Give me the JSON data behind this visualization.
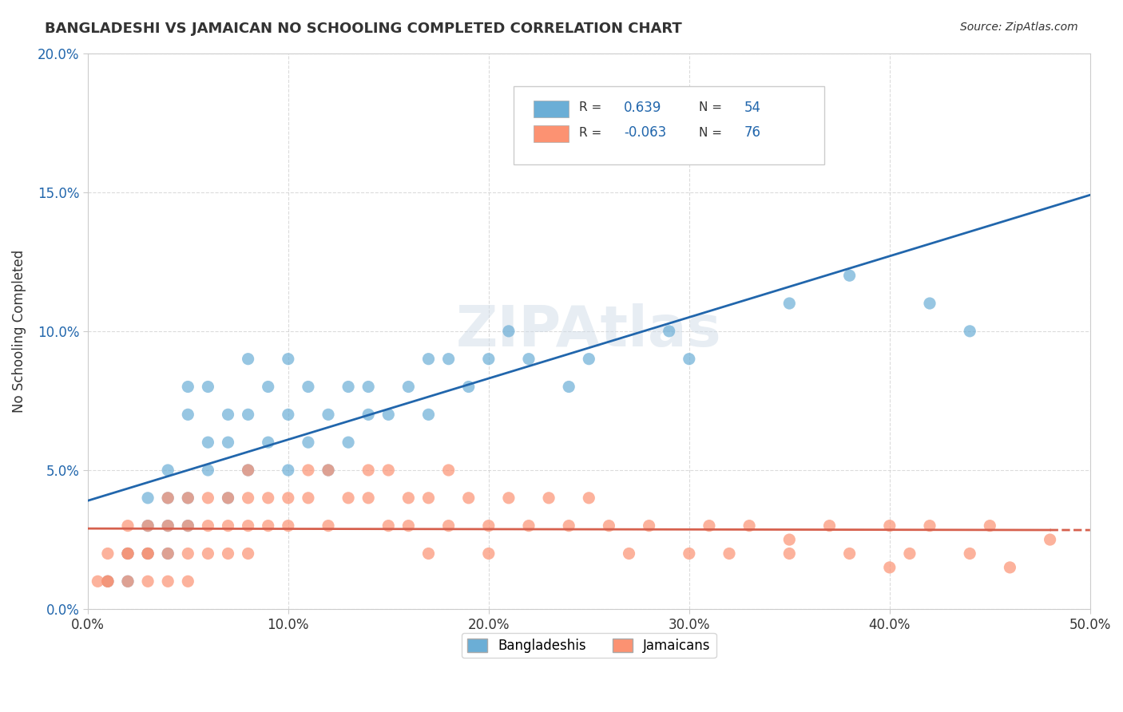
{
  "title": "BANGLADESHI VS JAMAICAN NO SCHOOLING COMPLETED CORRELATION CHART",
  "source": "Source: ZipAtlas.com",
  "xlabel": "",
  "ylabel": "No Schooling Completed",
  "xlim": [
    0.0,
    0.5
  ],
  "ylim": [
    0.0,
    0.2
  ],
  "xticks": [
    0.0,
    0.1,
    0.2,
    0.3,
    0.4,
    0.5
  ],
  "yticks": [
    0.0,
    0.05,
    0.1,
    0.15,
    0.2
  ],
  "xtick_labels": [
    "0.0%",
    "10.0%",
    "20.0%",
    "30.0%",
    "40.0%",
    "50.0%"
  ],
  "ytick_labels": [
    "0.0%",
    "5.0%",
    "10.0%",
    "15.0%",
    "20.0%"
  ],
  "blue_R": 0.639,
  "blue_N": 54,
  "pink_R": -0.063,
  "pink_N": 76,
  "blue_color": "#6baed6",
  "pink_color": "#fc9272",
  "blue_line_color": "#2166ac",
  "pink_line_color": "#d6604d",
  "background_color": "#ffffff",
  "legend_label_blue": "Bangladeshis",
  "legend_label_pink": "Jamaicans",
  "blue_scatter_x": [
    0.01,
    0.02,
    0.02,
    0.03,
    0.03,
    0.03,
    0.04,
    0.04,
    0.04,
    0.04,
    0.05,
    0.05,
    0.05,
    0.05,
    0.06,
    0.06,
    0.06,
    0.07,
    0.07,
    0.07,
    0.08,
    0.08,
    0.08,
    0.09,
    0.09,
    0.1,
    0.1,
    0.1,
    0.11,
    0.11,
    0.12,
    0.12,
    0.13,
    0.13,
    0.14,
    0.14,
    0.15,
    0.16,
    0.17,
    0.17,
    0.18,
    0.19,
    0.2,
    0.21,
    0.22,
    0.24,
    0.25,
    0.27,
    0.29,
    0.3,
    0.35,
    0.38,
    0.42,
    0.44
  ],
  "blue_scatter_y": [
    0.01,
    0.02,
    0.01,
    0.03,
    0.02,
    0.04,
    0.03,
    0.02,
    0.04,
    0.05,
    0.08,
    0.07,
    0.04,
    0.03,
    0.08,
    0.06,
    0.05,
    0.07,
    0.06,
    0.04,
    0.09,
    0.07,
    0.05,
    0.08,
    0.06,
    0.09,
    0.07,
    0.05,
    0.08,
    0.06,
    0.07,
    0.05,
    0.08,
    0.06,
    0.07,
    0.08,
    0.07,
    0.08,
    0.09,
    0.07,
    0.09,
    0.08,
    0.09,
    0.1,
    0.09,
    0.08,
    0.09,
    0.17,
    0.1,
    0.09,
    0.11,
    0.12,
    0.11,
    0.1
  ],
  "pink_scatter_x": [
    0.005,
    0.01,
    0.01,
    0.01,
    0.02,
    0.02,
    0.02,
    0.02,
    0.03,
    0.03,
    0.03,
    0.03,
    0.04,
    0.04,
    0.04,
    0.04,
    0.05,
    0.05,
    0.05,
    0.05,
    0.06,
    0.06,
    0.06,
    0.07,
    0.07,
    0.07,
    0.08,
    0.08,
    0.08,
    0.08,
    0.09,
    0.09,
    0.1,
    0.1,
    0.11,
    0.11,
    0.12,
    0.12,
    0.13,
    0.14,
    0.14,
    0.15,
    0.15,
    0.16,
    0.16,
    0.17,
    0.18,
    0.18,
    0.19,
    0.2,
    0.21,
    0.22,
    0.23,
    0.24,
    0.25,
    0.26,
    0.27,
    0.28,
    0.3,
    0.31,
    0.32,
    0.33,
    0.35,
    0.37,
    0.38,
    0.4,
    0.41,
    0.42,
    0.44,
    0.45,
    0.46,
    0.48,
    0.35,
    0.2,
    0.4,
    0.17
  ],
  "pink_scatter_y": [
    0.01,
    0.01,
    0.02,
    0.01,
    0.02,
    0.01,
    0.03,
    0.02,
    0.02,
    0.01,
    0.03,
    0.02,
    0.03,
    0.02,
    0.01,
    0.04,
    0.03,
    0.02,
    0.04,
    0.01,
    0.03,
    0.04,
    0.02,
    0.03,
    0.04,
    0.02,
    0.04,
    0.03,
    0.02,
    0.05,
    0.04,
    0.03,
    0.04,
    0.03,
    0.05,
    0.04,
    0.05,
    0.03,
    0.04,
    0.05,
    0.04,
    0.05,
    0.03,
    0.04,
    0.03,
    0.04,
    0.05,
    0.03,
    0.04,
    0.03,
    0.04,
    0.03,
    0.04,
    0.03,
    0.04,
    0.03,
    0.02,
    0.03,
    0.02,
    0.03,
    0.02,
    0.03,
    0.02,
    0.03,
    0.02,
    0.03,
    0.02,
    0.03,
    0.02,
    0.03,
    0.015,
    0.025,
    0.025,
    0.02,
    0.015,
    0.02
  ]
}
